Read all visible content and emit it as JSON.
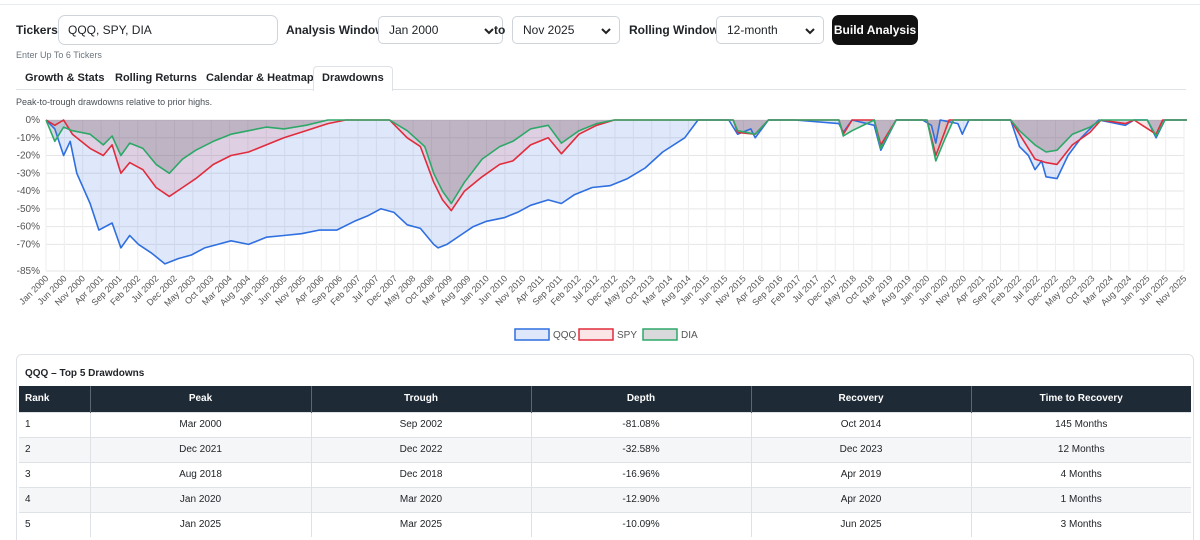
{
  "toolbar": {
    "tickers_label": "Tickers",
    "tickers_value": "QQQ, SPY, DIA",
    "tickers_hint": "Enter Up To 6 Tickers",
    "analysis_window_label": "Analysis Window",
    "start_value": "Jan 2000",
    "to_label": "to",
    "end_value": "Nov 2025",
    "rolling_window_label": "Rolling Window",
    "rolling_value": "12-month",
    "build_label": "Build Analysis"
  },
  "tabs": [
    {
      "label": "Growth & Stats",
      "active": false
    },
    {
      "label": "Rolling Returns",
      "active": false
    },
    {
      "label": "Calendar & Heatmap",
      "active": false
    },
    {
      "label": "Drawdowns",
      "active": true
    }
  ],
  "caption": "Peak-to-trough drawdowns relative to prior highs.",
  "colors": {
    "qqq": "#2f6fe0",
    "spy": "#e02c3c",
    "dia": "#2ea868",
    "header_bg": "#1e2b37"
  },
  "chart_data": {
    "type": "area",
    "y_ticks": [
      "0%",
      "-10%",
      "-20%",
      "-30%",
      "-40%",
      "-50%",
      "-60%",
      "-70%",
      "-85%"
    ],
    "y_tick_values": [
      0,
      -10,
      -20,
      -30,
      -40,
      -50,
      -60,
      -70,
      -85
    ],
    "ylim": [
      -85,
      0
    ],
    "x_ticks": [
      "Jan 2000",
      "Jun 2000",
      "Nov 2000",
      "Apr 2001",
      "Sep 2001",
      "Feb 2002",
      "Jul 2002",
      "Dec 2002",
      "May 2003",
      "Oct 2003",
      "Mar 2004",
      "Aug 2004",
      "Jan 2005",
      "Jun 2005",
      "Nov 2005",
      "Apr 2006",
      "Sep 2006",
      "Feb 2007",
      "Jul 2007",
      "Dec 2007",
      "May 2008",
      "Oct 2008",
      "Mar 2009",
      "Aug 2009",
      "Jan 2010",
      "Jun 2010",
      "Nov 2010",
      "Apr 2011",
      "Sep 2011",
      "Feb 2012",
      "Jul 2012",
      "Dec 2012",
      "May 2013",
      "Oct 2013",
      "Mar 2014",
      "Aug 2014",
      "Jan 2015",
      "Jun 2015",
      "Nov 2015",
      "Apr 2016",
      "Sep 2016",
      "Feb 2017",
      "Jul 2017",
      "Dec 2017",
      "May 2018",
      "Oct 2018",
      "Mar 2019",
      "Aug 2019",
      "Jan 2020",
      "Jun 2020",
      "Nov 2020",
      "Apr 2021",
      "Sep 2021",
      "Feb 2022",
      "Jul 2022",
      "Dec 2022",
      "May 2023",
      "Oct 2023",
      "Mar 2024",
      "Aug 2024",
      "Jan 2025",
      "Jun 2025",
      "Nov 2025"
    ],
    "x_start": "Jan 2000",
    "x_end": "Nov 2025",
    "grid": true,
    "legend_position": "bottom",
    "series": [
      {
        "name": "QQQ",
        "key": "qqq",
        "points": [
          [
            2000.0,
            0
          ],
          [
            2000.2,
            -5
          ],
          [
            2000.4,
            -20
          ],
          [
            2000.55,
            -12
          ],
          [
            2000.7,
            -30
          ],
          [
            2001.0,
            -47
          ],
          [
            2001.2,
            -62
          ],
          [
            2001.5,
            -58
          ],
          [
            2001.7,
            -72
          ],
          [
            2001.9,
            -65
          ],
          [
            2002.1,
            -70
          ],
          [
            2002.4,
            -75
          ],
          [
            2002.7,
            -81
          ],
          [
            2003.0,
            -78
          ],
          [
            2003.3,
            -76
          ],
          [
            2003.6,
            -72
          ],
          [
            2003.9,
            -70
          ],
          [
            2004.2,
            -68
          ],
          [
            2004.6,
            -70
          ],
          [
            2005.0,
            -66
          ],
          [
            2005.4,
            -65
          ],
          [
            2005.8,
            -64
          ],
          [
            2006.2,
            -62
          ],
          [
            2006.6,
            -62
          ],
          [
            2007.0,
            -57
          ],
          [
            2007.3,
            -54
          ],
          [
            2007.6,
            -50
          ],
          [
            2007.9,
            -52
          ],
          [
            2008.2,
            -59
          ],
          [
            2008.5,
            -61
          ],
          [
            2008.8,
            -70
          ],
          [
            2008.9,
            -72
          ],
          [
            2009.1,
            -70
          ],
          [
            2009.4,
            -65
          ],
          [
            2009.7,
            -60
          ],
          [
            2010.0,
            -57
          ],
          [
            2010.4,
            -55
          ],
          [
            2010.7,
            -52
          ],
          [
            2011.0,
            -48
          ],
          [
            2011.4,
            -45
          ],
          [
            2011.7,
            -47
          ],
          [
            2012.0,
            -42
          ],
          [
            2012.4,
            -38
          ],
          [
            2012.8,
            -37
          ],
          [
            2013.2,
            -33
          ],
          [
            2013.6,
            -27
          ],
          [
            2014.0,
            -18
          ],
          [
            2014.5,
            -10
          ],
          [
            2014.8,
            0
          ],
          [
            2015.5,
            0
          ],
          [
            2015.7,
            -8
          ],
          [
            2016.0,
            -5
          ],
          [
            2016.1,
            -10
          ],
          [
            2016.4,
            0
          ],
          [
            2017.0,
            0
          ],
          [
            2018.0,
            -2
          ],
          [
            2018.1,
            -7
          ],
          [
            2018.3,
            0
          ],
          [
            2018.8,
            -3
          ],
          [
            2018.95,
            -17
          ],
          [
            2019.3,
            0
          ],
          [
            2019.9,
            0
          ],
          [
            2020.1,
            -3
          ],
          [
            2020.2,
            -13
          ],
          [
            2020.3,
            0
          ],
          [
            2020.7,
            -2
          ],
          [
            2020.8,
            -8
          ],
          [
            2020.95,
            0
          ],
          [
            2021.9,
            0
          ],
          [
            2022.1,
            -15
          ],
          [
            2022.3,
            -20
          ],
          [
            2022.45,
            -28
          ],
          [
            2022.6,
            -23
          ],
          [
            2022.7,
            -32
          ],
          [
            2022.95,
            -33
          ],
          [
            2023.2,
            -20
          ],
          [
            2023.5,
            -10
          ],
          [
            2023.9,
            0
          ],
          [
            2024.5,
            -3
          ],
          [
            2024.7,
            0
          ],
          [
            2025.0,
            0
          ],
          [
            2025.2,
            -10
          ],
          [
            2025.4,
            0
          ],
          [
            2025.9,
            0
          ]
        ]
      },
      {
        "name": "SPY",
        "key": "spy",
        "points": [
          [
            2000.0,
            0
          ],
          [
            2000.2,
            -3
          ],
          [
            2000.4,
            0
          ],
          [
            2000.6,
            -8
          ],
          [
            2001.0,
            -16
          ],
          [
            2001.3,
            -20
          ],
          [
            2001.5,
            -14
          ],
          [
            2001.7,
            -30
          ],
          [
            2001.9,
            -24
          ],
          [
            2002.2,
            -28
          ],
          [
            2002.5,
            -38
          ],
          [
            2002.8,
            -43
          ],
          [
            2003.1,
            -38
          ],
          [
            2003.4,
            -33
          ],
          [
            2003.8,
            -25
          ],
          [
            2004.2,
            -20
          ],
          [
            2004.6,
            -18
          ],
          [
            2005.0,
            -14
          ],
          [
            2005.4,
            -10
          ],
          [
            2005.9,
            -6
          ],
          [
            2006.4,
            -2
          ],
          [
            2006.8,
            0
          ],
          [
            2007.8,
            0
          ],
          [
            2008.2,
            -10
          ],
          [
            2008.5,
            -15
          ],
          [
            2008.8,
            -35
          ],
          [
            2009.0,
            -45
          ],
          [
            2009.2,
            -51
          ],
          [
            2009.5,
            -40
          ],
          [
            2009.9,
            -32
          ],
          [
            2010.3,
            -25
          ],
          [
            2010.6,
            -23
          ],
          [
            2011.0,
            -14
          ],
          [
            2011.4,
            -10
          ],
          [
            2011.7,
            -19
          ],
          [
            2012.1,
            -8
          ],
          [
            2012.5,
            -3
          ],
          [
            2012.9,
            0
          ],
          [
            2015.6,
            0
          ],
          [
            2015.7,
            -7
          ],
          [
            2016.1,
            -8
          ],
          [
            2016.4,
            0
          ],
          [
            2017.0,
            0
          ],
          [
            2018.0,
            0
          ],
          [
            2018.1,
            -8
          ],
          [
            2018.3,
            0
          ],
          [
            2018.8,
            0
          ],
          [
            2018.95,
            -14
          ],
          [
            2019.3,
            0
          ],
          [
            2020.0,
            0
          ],
          [
            2020.2,
            -20
          ],
          [
            2020.35,
            -10
          ],
          [
            2020.5,
            0
          ],
          [
            2021.9,
            0
          ],
          [
            2022.1,
            -8
          ],
          [
            2022.45,
            -22
          ],
          [
            2022.7,
            -24
          ],
          [
            2022.95,
            -25
          ],
          [
            2023.3,
            -14
          ],
          [
            2023.7,
            -7
          ],
          [
            2023.95,
            0
          ],
          [
            2024.5,
            -2
          ],
          [
            2024.7,
            0
          ],
          [
            2025.2,
            -8
          ],
          [
            2025.35,
            0
          ],
          [
            2025.9,
            0
          ]
        ]
      },
      {
        "name": "DIA",
        "key": "dia",
        "points": [
          [
            2000.0,
            0
          ],
          [
            2000.2,
            -12
          ],
          [
            2000.4,
            -4
          ],
          [
            2000.6,
            -6
          ],
          [
            2001.0,
            -8
          ],
          [
            2001.3,
            -14
          ],
          [
            2001.5,
            -9
          ],
          [
            2001.7,
            -20
          ],
          [
            2001.9,
            -13
          ],
          [
            2002.2,
            -16
          ],
          [
            2002.5,
            -25
          ],
          [
            2002.8,
            -30
          ],
          [
            2003.1,
            -22
          ],
          [
            2003.4,
            -17
          ],
          [
            2003.8,
            -12
          ],
          [
            2004.2,
            -8
          ],
          [
            2004.6,
            -6
          ],
          [
            2005.0,
            -4
          ],
          [
            2005.4,
            -5
          ],
          [
            2005.9,
            -3
          ],
          [
            2006.4,
            0
          ],
          [
            2007.8,
            0
          ],
          [
            2008.2,
            -6
          ],
          [
            2008.6,
            -15
          ],
          [
            2008.8,
            -30
          ],
          [
            2009.0,
            -40
          ],
          [
            2009.2,
            -47
          ],
          [
            2009.5,
            -35
          ],
          [
            2009.9,
            -22
          ],
          [
            2010.3,
            -15
          ],
          [
            2010.6,
            -12
          ],
          [
            2011.0,
            -5
          ],
          [
            2011.4,
            -3
          ],
          [
            2011.7,
            -13
          ],
          [
            2012.1,
            -6
          ],
          [
            2012.5,
            -2
          ],
          [
            2012.9,
            0
          ],
          [
            2015.6,
            0
          ],
          [
            2015.7,
            -6
          ],
          [
            2016.1,
            -8
          ],
          [
            2016.4,
            0
          ],
          [
            2017.0,
            0
          ],
          [
            2018.0,
            0
          ],
          [
            2018.1,
            -9
          ],
          [
            2018.3,
            -6
          ],
          [
            2018.8,
            0
          ],
          [
            2018.95,
            -16
          ],
          [
            2019.3,
            0
          ],
          [
            2020.0,
            0
          ],
          [
            2020.2,
            -23
          ],
          [
            2020.4,
            -11
          ],
          [
            2020.6,
            0
          ],
          [
            2021.9,
            0
          ],
          [
            2022.1,
            -6
          ],
          [
            2022.45,
            -14
          ],
          [
            2022.7,
            -18
          ],
          [
            2022.95,
            -17
          ],
          [
            2023.3,
            -8
          ],
          [
            2023.7,
            -4
          ],
          [
            2023.95,
            0
          ],
          [
            2025.0,
            0
          ],
          [
            2025.2,
            -9
          ],
          [
            2025.4,
            0
          ],
          [
            2025.9,
            0
          ]
        ]
      }
    ]
  },
  "table": {
    "title": "QQQ – Top 5 Drawdowns",
    "columns": [
      "Rank",
      "Peak",
      "Trough",
      "Depth",
      "Recovery",
      "Time to Recovery"
    ],
    "rows": [
      [
        "1",
        "Mar 2000",
        "Sep 2002",
        "-81.08%",
        "Oct 2014",
        "145 Months"
      ],
      [
        "2",
        "Dec 2021",
        "Dec 2022",
        "-32.58%",
        "Dec 2023",
        "12 Months"
      ],
      [
        "3",
        "Aug 2018",
        "Dec 2018",
        "-16.96%",
        "Apr 2019",
        "4 Months"
      ],
      [
        "4",
        "Jan 2020",
        "Mar 2020",
        "-12.90%",
        "Apr 2020",
        "1 Months"
      ],
      [
        "5",
        "Jan 2025",
        "Mar 2025",
        "-10.09%",
        "Jun 2025",
        "3 Months"
      ]
    ]
  }
}
